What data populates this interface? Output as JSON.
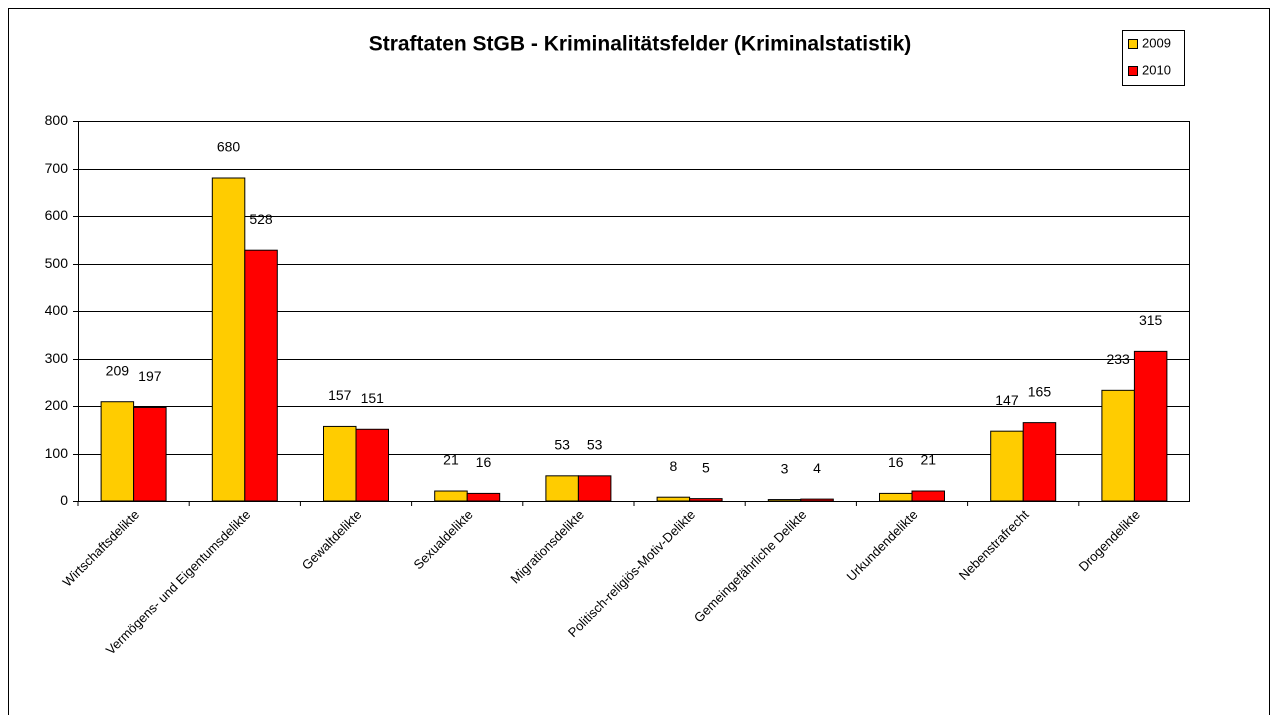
{
  "chart_data": {
    "type": "bar",
    "title": "Straftaten StGB - Kriminalitätsfelder (Kriminalstatistik)",
    "categories": [
      "Wirtschaftsdelikte",
      "Vermögens- und Eigentumsdelikte",
      "Gewaltdelikte",
      "Sexualdelikte",
      "Migrationsdelikte",
      "Politisch-religiös-Motiv-Delikte",
      "Gemeingefährliche Delikte",
      "Urkundendelikte",
      "Nebenstrafrecht",
      "Drogendelikte"
    ],
    "series": [
      {
        "name": "2009",
        "color": "#FFCC00",
        "values": [
          209,
          680,
          157,
          21,
          53,
          8,
          3,
          16,
          147,
          233
        ]
      },
      {
        "name": "2010",
        "color": "#FF0000",
        "values": [
          197,
          528,
          151,
          16,
          53,
          5,
          4,
          21,
          165,
          315
        ]
      }
    ],
    "ylim": [
      0,
      800
    ],
    "yticks": [
      0,
      100,
      200,
      300,
      400,
      500,
      600,
      700,
      800
    ],
    "grid": true,
    "legend": "top-right"
  }
}
